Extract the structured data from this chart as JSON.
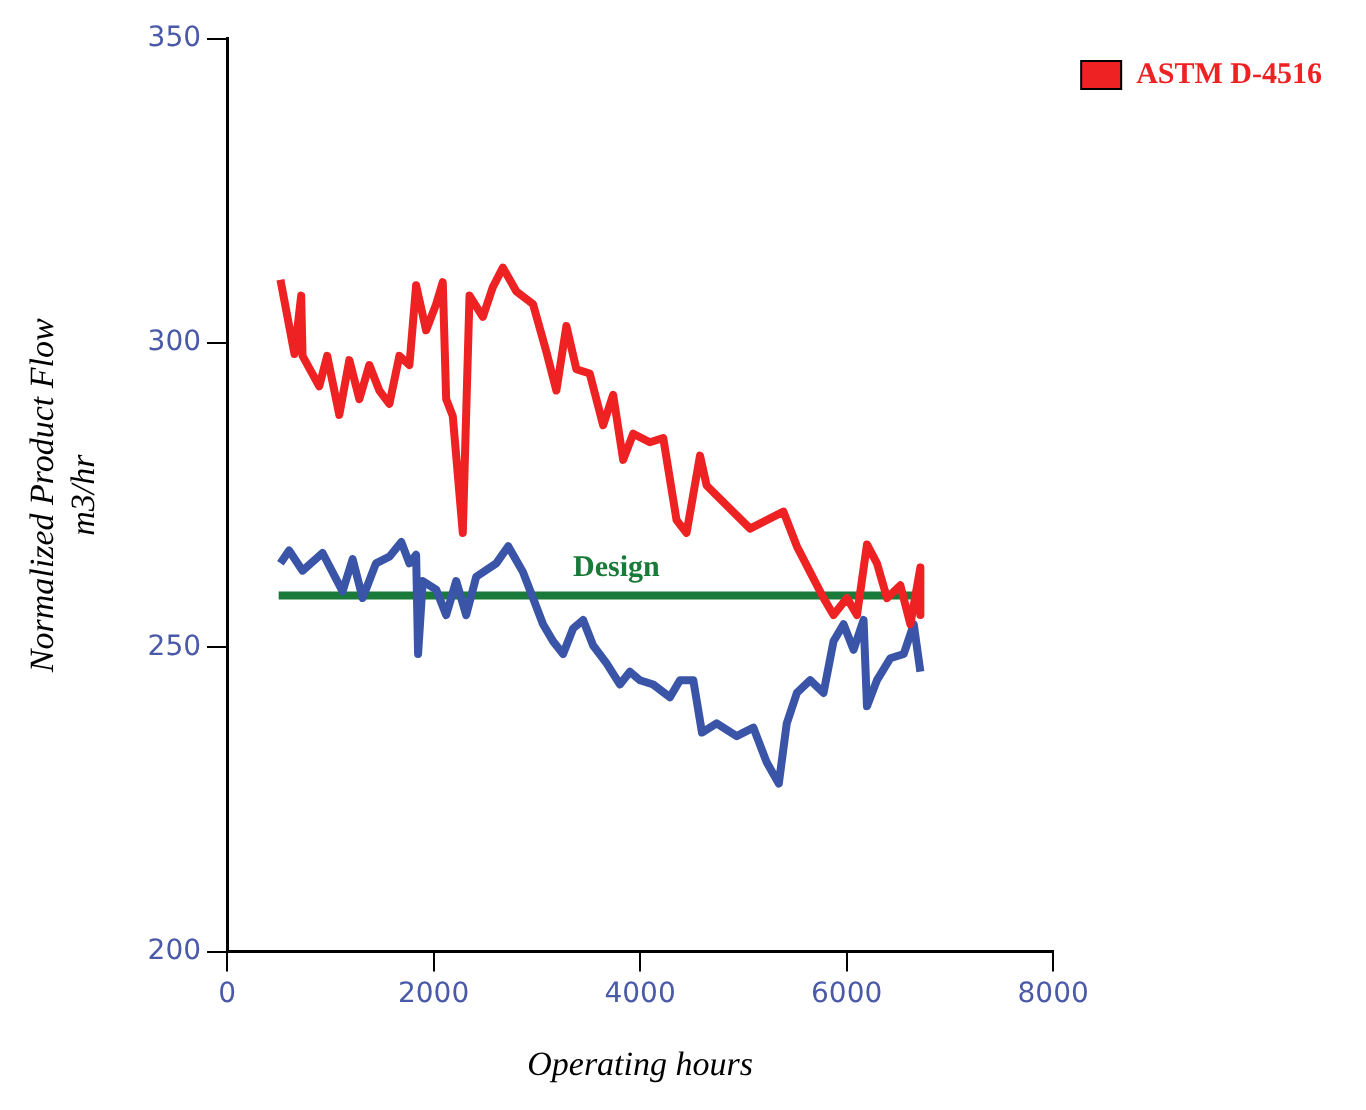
{
  "chart_data": {
    "type": "line",
    "xlabel": "Operating hours",
    "ylabel": "Normalized Product Flow\nm3/hr",
    "xlim": [
      0,
      8000
    ],
    "xticks": [
      0,
      2000,
      4000,
      6000,
      8000
    ],
    "ylim": [
      200,
      350
    ],
    "yticks": [
      200,
      250,
      300,
      350
    ],
    "grid": false,
    "legend": "right",
    "marker": "none",
    "line_style": "solid",
    "annotations": [
      {
        "text": "Design",
        "x": 3770,
        "y": 258.5
      }
    ],
    "series": [
      {
        "name": "ASTM D-4516",
        "color": "#ee2222",
        "x": [
          517,
          653,
          718,
          731,
          893,
          970,
          1087,
          1184,
          1281,
          1378,
          1475,
          1572,
          1669,
          1766,
          1831,
          1928,
          2025,
          2089,
          2122,
          2186,
          2283,
          2348,
          2477,
          2574,
          2671,
          2801,
          2963,
          3092,
          3189,
          3286,
          3383,
          3512,
          3642,
          3739,
          3836,
          3933,
          4094,
          4224,
          4353,
          4450,
          4580,
          4644,
          5065,
          5388,
          5518,
          5776,
          5873,
          6003,
          6100,
          6197,
          6294,
          6391,
          6520,
          6617,
          6714,
          6714
        ],
        "values": [
          310.4,
          298.2,
          307.8,
          297.9,
          292.9,
          297.9,
          288.2,
          297.2,
          290.8,
          296.4,
          292.2,
          290,
          297.9,
          296.4,
          309.5,
          302.1,
          306.4,
          310,
          290.8,
          288,
          268.8,
          307.8,
          304.3,
          309.2,
          312.4,
          308.5,
          306.4,
          298.6,
          292.2,
          302.8,
          295.7,
          295,
          286.5,
          291.5,
          280.8,
          285.1,
          283.7,
          284.4,
          270.9,
          268.8,
          281.5,
          276.6,
          269.5,
          272.3,
          266.6,
          258.1,
          255.3,
          258.1,
          255.3,
          266.9,
          263.8,
          258.1,
          260.2,
          253.8,
          263.1,
          255.3
        ]
      },
      {
        "color": "#3a55a8",
        "x": [
          517,
          601,
          731,
          925,
          1119,
          1216,
          1313,
          1442,
          1572,
          1688,
          1766,
          1831,
          1850,
          1895,
          2025,
          2122,
          2219,
          2316,
          2413,
          2607,
          2723,
          2865,
          2963,
          3060,
          3157,
          3254,
          3351,
          3448,
          3545,
          3674,
          3804,
          3901,
          3998,
          4127,
          4289,
          4386,
          4515,
          4599,
          4741,
          4935,
          5097,
          5226,
          5343,
          5420,
          5518,
          5647,
          5776,
          5873,
          5970,
          6067,
          6164,
          6197,
          6294,
          6423,
          6553,
          6650,
          6714
        ],
        "values": [
          263.8,
          265.9,
          262.6,
          265.5,
          259.2,
          264.5,
          258.1,
          263.8,
          264.9,
          267.3,
          263.8,
          265.2,
          248.9,
          260.9,
          259.5,
          255.3,
          260.9,
          255.3,
          261.6,
          263.8,
          266.6,
          262.4,
          258.1,
          253.8,
          251,
          248.9,
          253.1,
          254.5,
          250.3,
          247.4,
          243.9,
          246,
          244.6,
          243.9,
          241.8,
          244.6,
          244.6,
          236,
          237.5,
          235.4,
          236.8,
          231.1,
          227.6,
          237.5,
          242.5,
          244.6,
          242.5,
          251,
          253.8,
          249.6,
          254.5,
          240.3,
          244.6,
          248.2,
          248.9,
          253.8,
          246
        ]
      },
      {
        "color": "#1a7a3a",
        "x": [
          500,
          6720
        ],
        "values": [
          258.5,
          258.5
        ]
      }
    ]
  }
}
